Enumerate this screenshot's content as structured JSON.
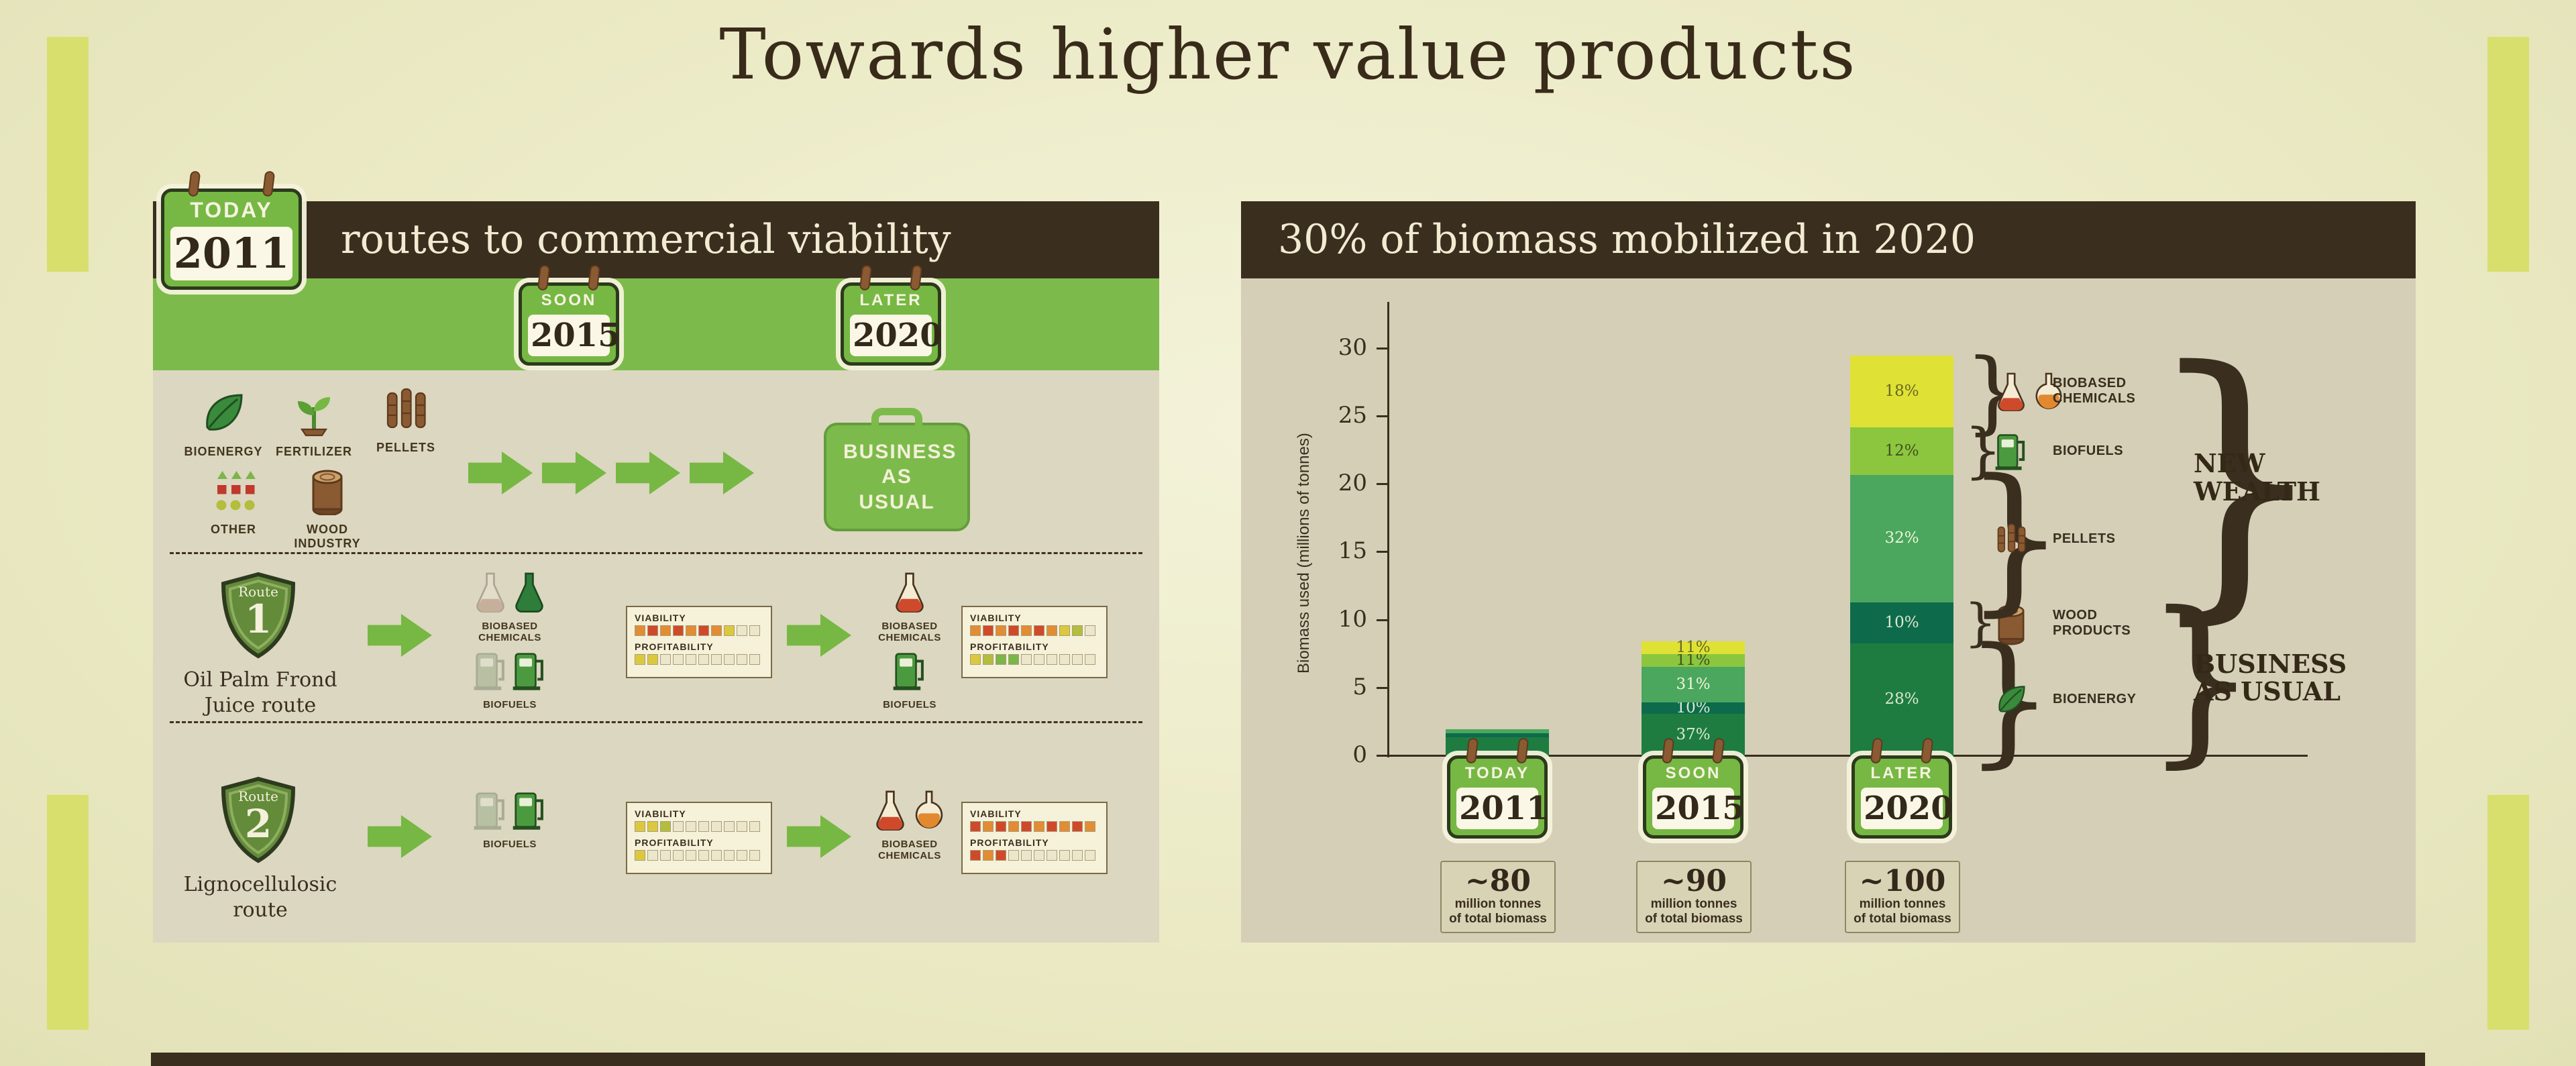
{
  "page": {
    "title": "Towards higher value products"
  },
  "left_panel": {
    "header": "routes to commercial viability",
    "timeline": [
      {
        "tag": "TODAY",
        "year": "2011"
      },
      {
        "tag": "SOON",
        "year": "2015"
      },
      {
        "tag": "LATER",
        "year": "2020"
      }
    ],
    "bau": {
      "icons": [
        {
          "icon": "leaf",
          "label": "BIOENERGY"
        },
        {
          "icon": "sprout",
          "label": "FERTILIZER"
        },
        {
          "icon": "pellets",
          "label": "PELLETS"
        },
        {
          "icon": "shapes",
          "label": "OTHER"
        },
        {
          "icon": "log",
          "label": "WOOD INDUSTRY"
        }
      ],
      "briefcase_label": "BUSINESS AS USUAL"
    },
    "labels": {
      "biobased": "BIOBASED CHEMICALS",
      "biofuels": "BIOFUELS",
      "viability": "VIABILITY",
      "profitability": "PROFITABILITY"
    },
    "routes": [
      {
        "badge": "Route",
        "number": "1",
        "name": "Oil Palm Frond Juice route"
      },
      {
        "badge": "Route",
        "number": "2",
        "name": "Lignocellulosic route"
      }
    ],
    "meters": {
      "r1a": {
        "viability": [
          "O",
          "R",
          "O",
          "R",
          "O",
          "R",
          "O",
          "Y",
          "E",
          "E"
        ],
        "profitability": [
          "Y",
          "Y",
          "E",
          "E",
          "E",
          "E",
          "E",
          "E",
          "E",
          "E"
        ]
      },
      "r1b": {
        "viability": [
          "O",
          "R",
          "O",
          "R",
          "O",
          "R",
          "O",
          "Y",
          "L",
          "E"
        ],
        "profitability": [
          "Y",
          "L",
          "G",
          "G",
          "E",
          "E",
          "E",
          "E",
          "E",
          "E"
        ]
      },
      "r2a": {
        "viability": [
          "Y",
          "Y",
          "L",
          "E",
          "E",
          "E",
          "E",
          "E",
          "E",
          "E"
        ],
        "profitability": [
          "Y",
          "E",
          "E",
          "E",
          "E",
          "E",
          "E",
          "E",
          "E",
          "E"
        ]
      },
      "r2b": {
        "viability": [
          "R",
          "O",
          "R",
          "O",
          "R",
          "O",
          "R",
          "O",
          "R",
          "O"
        ],
        "profitability": [
          "R",
          "O",
          "R",
          "E",
          "E",
          "E",
          "E",
          "E",
          "E",
          "E"
        ]
      }
    }
  },
  "right_panel": {
    "header": "30% of biomass mobilized in 2020"
  },
  "chart_data": {
    "type": "bar",
    "stacked": true,
    "title": "30% of biomass mobilized in 2020",
    "ylabel": "Biomass used (millions of tonnes)",
    "yticks": [
      0,
      5,
      10,
      15,
      20,
      25,
      30
    ],
    "ylim": [
      0,
      32
    ],
    "grid": false,
    "categories": [
      "2011",
      "2015",
      "2020"
    ],
    "category_tags": [
      "TODAY",
      "SOON",
      "LATER"
    ],
    "totals": [
      {
        "value": "~80",
        "unit": "million tonnes",
        "sub": "of total biomass"
      },
      {
        "value": "~90",
        "unit": "million tonnes",
        "sub": "of total biomass"
      },
      {
        "value": "~100",
        "unit": "million tonnes",
        "sub": "of total biomass"
      }
    ],
    "series": [
      {
        "name": "BIOENERGY",
        "icon": "leaf",
        "group": "BUSINESS AS USUAL",
        "color": "#1e7c40",
        "pct_color": "#dcead0",
        "values": [
          1.4,
          3.1,
          8.3
        ],
        "pct": [
          "",
          "37%",
          "28%"
        ]
      },
      {
        "name": "WOOD PRODUCTS",
        "icon": "log",
        "group": "BUSINESS AS USUAL",
        "color": "#0d6b4b",
        "pct_color": "#dcead0",
        "values": [
          0.3,
          0.85,
          3.0
        ],
        "pct": [
          "",
          "10%",
          "10%"
        ]
      },
      {
        "name": "PELLETS",
        "icon": "pellets",
        "group": "NEW WEALTH",
        "color": "#4aa75d",
        "pct_color": "#eef4dc",
        "values": [
          0.3,
          2.6,
          9.4
        ],
        "pct": [
          "",
          "31%",
          "32%"
        ]
      },
      {
        "name": "BIOFUELS",
        "icon": "pump-green",
        "group": "NEW WEALTH",
        "color": "#8cc63f",
        "pct_color": "#41511e",
        "values": [
          0,
          0.95,
          3.5
        ],
        "pct": [
          "",
          "11%",
          "12%"
        ]
      },
      {
        "name": "BIOBASED CHEMICALS",
        "icon": "flask-pair",
        "group": "NEW WEALTH",
        "color": "#e0e135",
        "pct_color": "#666a1f",
        "values": [
          0,
          0.95,
          5.3
        ],
        "pct": [
          "",
          "11%",
          "18%"
        ]
      }
    ],
    "groups": [
      {
        "label": "NEW WEALTH",
        "members": [
          "PELLETS",
          "BIOFUELS",
          "BIOBASED CHEMICALS"
        ]
      },
      {
        "label": "BUSINESS AS USUAL",
        "members": [
          "BIOENERGY",
          "WOOD PRODUCTS"
        ]
      }
    ]
  },
  "colors": {
    "accent_green": "#7cbb4b",
    "dark_brown": "#3a2e1f",
    "panel_tan": "#dcd7c0",
    "frame_accent": "#d9df6c"
  }
}
